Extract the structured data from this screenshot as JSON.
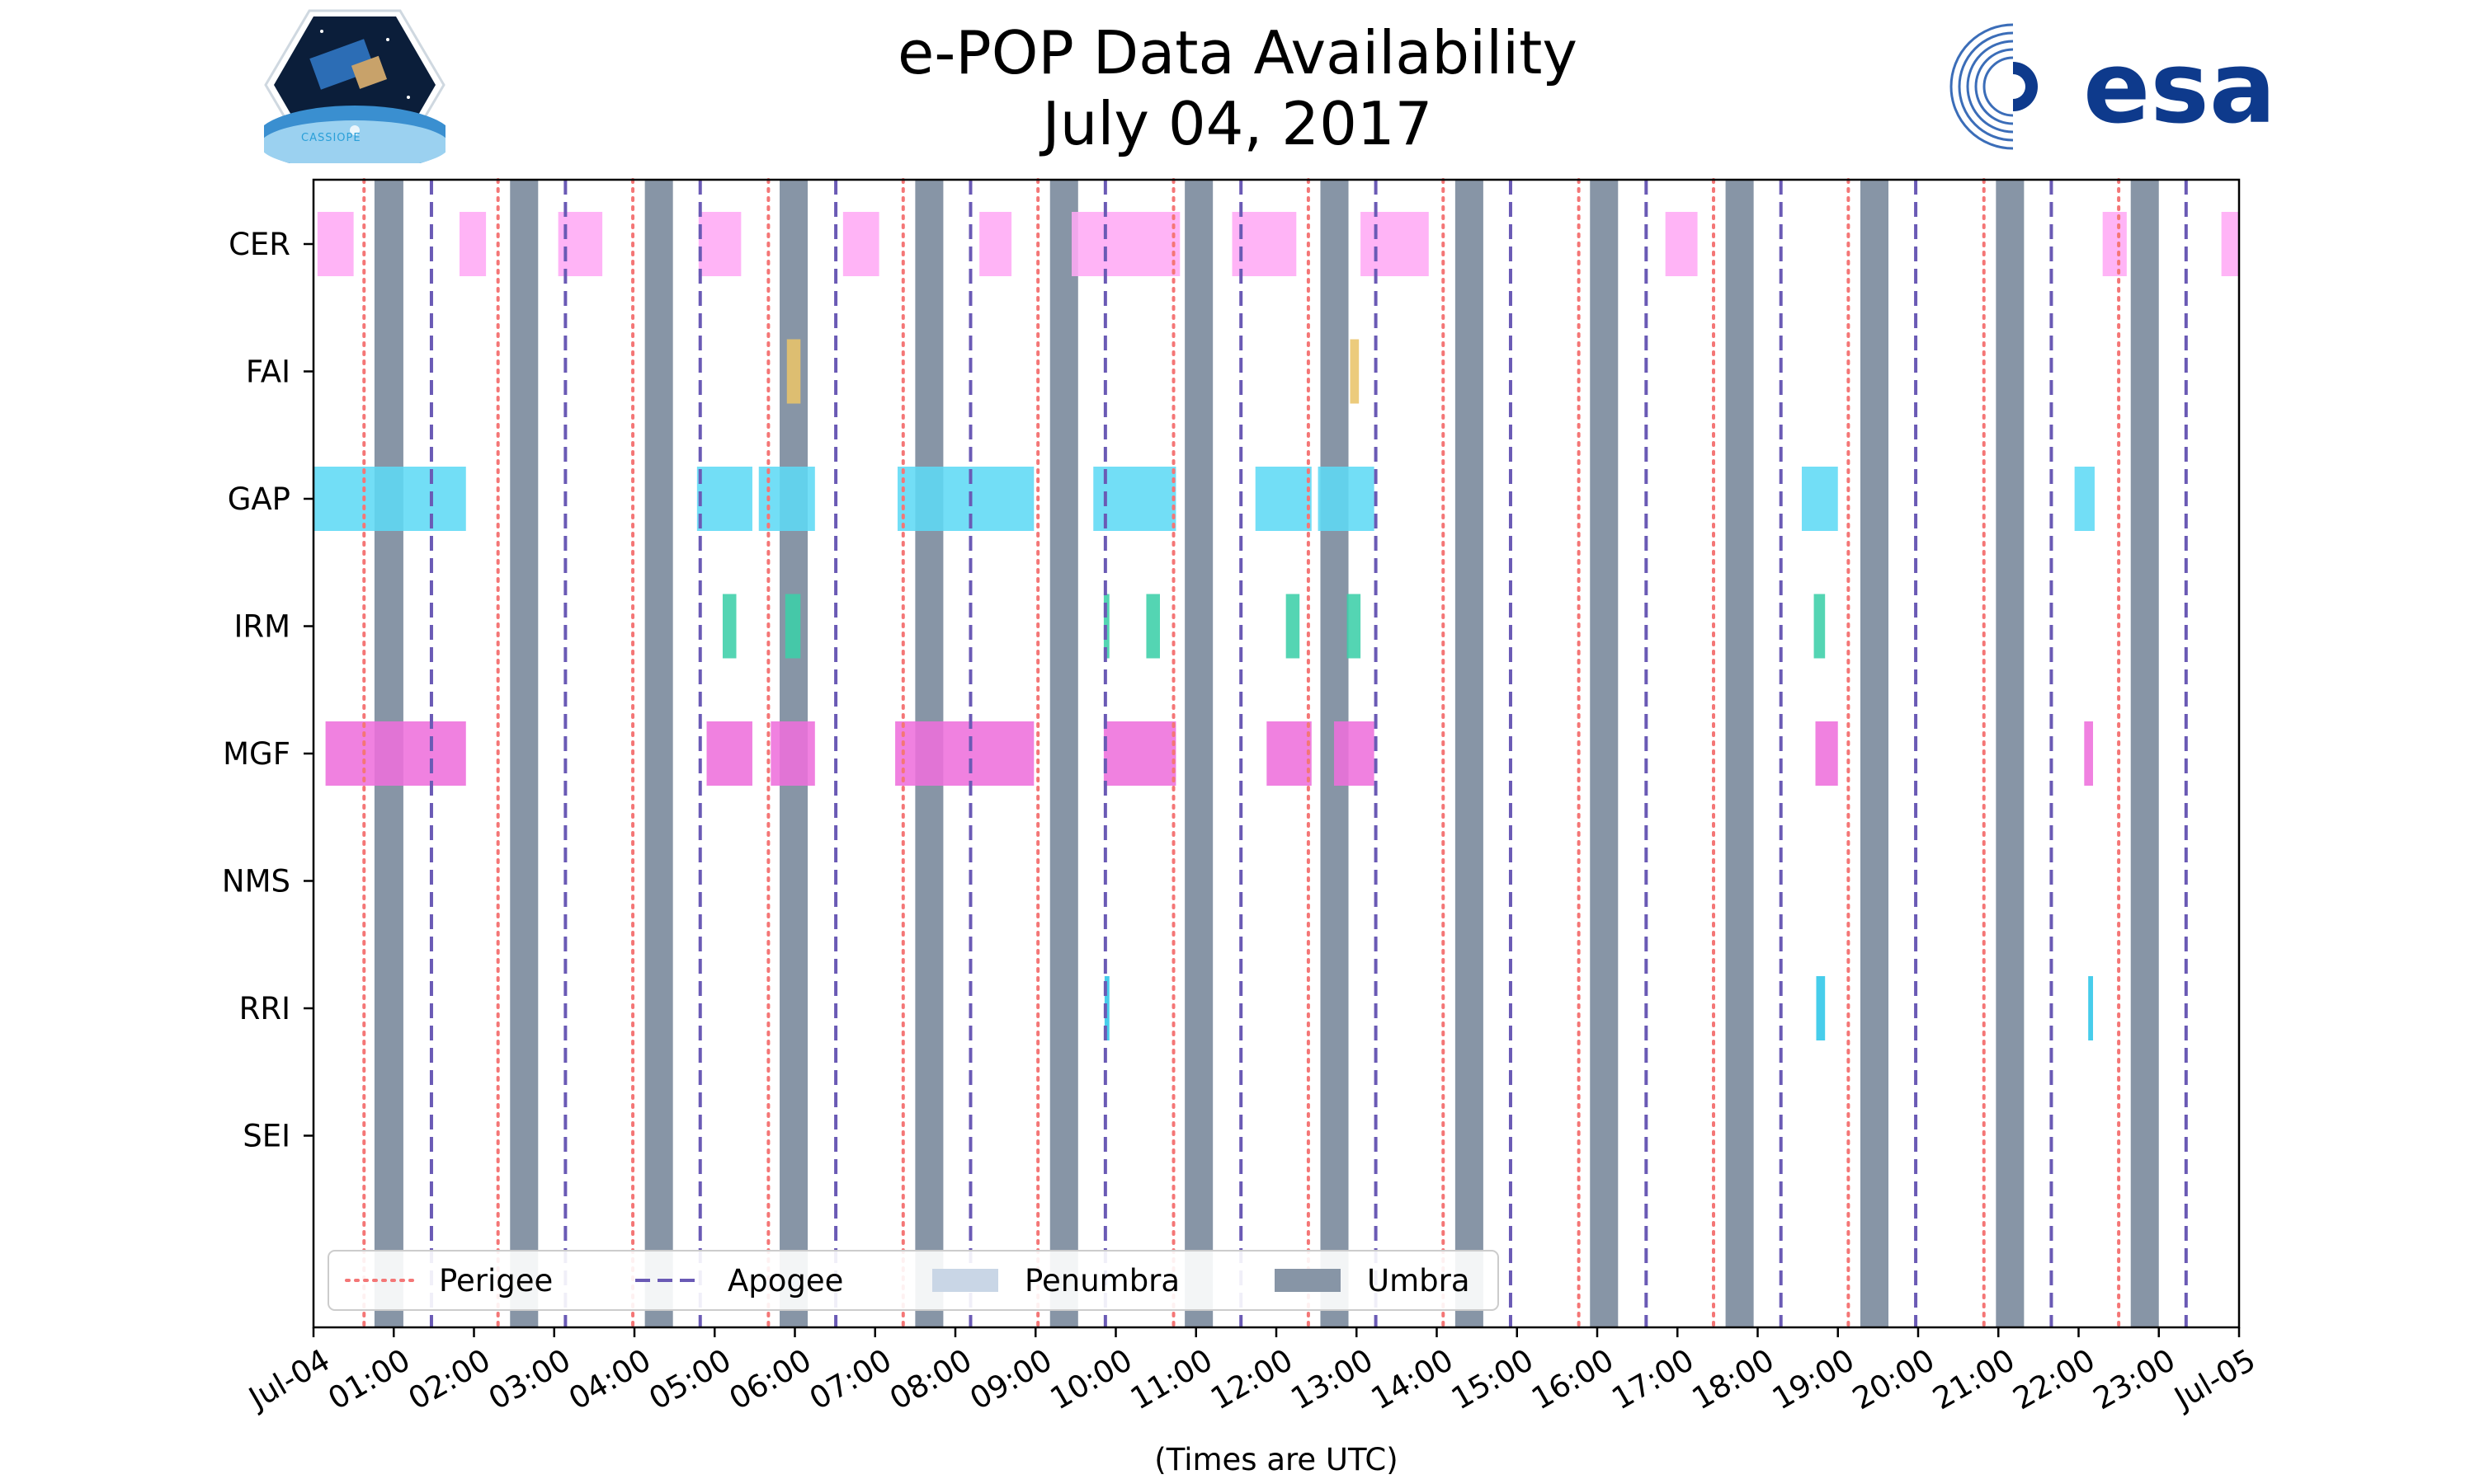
{
  "chart_data": {
    "type": "timeline",
    "title_line1": "e-POP Data Availability",
    "title_line2": "July 04, 2017",
    "xlabel": "(Times are UTC)",
    "ylabel": "",
    "xlim_hours": [
      0,
      24
    ],
    "grid": false,
    "xtick_labels": [
      "Jul-04",
      "01:00",
      "02:00",
      "03:00",
      "04:00",
      "05:00",
      "06:00",
      "07:00",
      "08:00",
      "09:00",
      "10:00",
      "11:00",
      "12:00",
      "13:00",
      "14:00",
      "15:00",
      "16:00",
      "17:00",
      "18:00",
      "19:00",
      "20:00",
      "21:00",
      "22:00",
      "23:00",
      "Jul-05"
    ],
    "instruments": [
      "CER",
      "FAI",
      "GAP",
      "IRM",
      "MGF",
      "NMS",
      "RRI",
      "SEI"
    ],
    "colors": {
      "CER": "#ffaaf5",
      "FAI": "#e9c46a",
      "GAP": "#5ed9f5",
      "IRM": "#3ccfa8",
      "MGF": "#ee70dc",
      "RRI": "#2ec6e8",
      "perigee": "#f47676",
      "apogee": "#6a5ab5",
      "umbra": "#8795a6",
      "penumbra": "#c9d6e6"
    },
    "perigee_hours": [
      0.63,
      2.3,
      3.98,
      5.67,
      7.35,
      9.03,
      10.72,
      12.4,
      14.08,
      15.77,
      17.45,
      19.13,
      20.82,
      22.5
    ],
    "apogee_hours": [
      1.47,
      3.14,
      4.82,
      6.51,
      8.19,
      9.87,
      11.56,
      13.24,
      14.92,
      16.61,
      18.29,
      19.97,
      21.66,
      23.34
    ],
    "umbra_intervals": [
      [
        0.76,
        1.12
      ],
      [
        2.45,
        2.8
      ],
      [
        4.13,
        4.48
      ],
      [
        5.81,
        6.16
      ],
      [
        7.5,
        7.85
      ],
      [
        9.18,
        9.53
      ],
      [
        10.86,
        11.21
      ],
      [
        12.55,
        12.9
      ],
      [
        14.23,
        14.58
      ],
      [
        15.91,
        16.26
      ],
      [
        17.6,
        17.95
      ],
      [
        19.28,
        19.63
      ],
      [
        20.97,
        21.32
      ],
      [
        22.65,
        23.0
      ]
    ],
    "availability": {
      "CER": [
        [
          0.05,
          0.5
        ],
        [
          1.82,
          2.15
        ],
        [
          3.05,
          3.6
        ],
        [
          4.8,
          5.33
        ],
        [
          6.6,
          7.05
        ],
        [
          8.3,
          8.7
        ],
        [
          9.45,
          10.8
        ],
        [
          11.45,
          12.25
        ],
        [
          13.05,
          13.9
        ],
        [
          16.85,
          17.25
        ],
        [
          22.3,
          22.6
        ],
        [
          23.78,
          24.0
        ]
      ],
      "FAI": [
        [
          5.9,
          6.07
        ],
        [
          12.92,
          13.03
        ]
      ],
      "GAP": [
        [
          0.0,
          1.9
        ],
        [
          4.78,
          5.47
        ],
        [
          5.55,
          6.25
        ],
        [
          7.28,
          8.98
        ],
        [
          9.72,
          10.75
        ],
        [
          11.74,
          12.44
        ],
        [
          12.52,
          13.22
        ],
        [
          18.55,
          19.0
        ],
        [
          21.95,
          22.2
        ]
      ],
      "IRM": [
        [
          5.1,
          5.27
        ],
        [
          5.88,
          6.07
        ],
        [
          9.85,
          9.92
        ],
        [
          10.38,
          10.55
        ],
        [
          12.12,
          12.29
        ],
        [
          12.88,
          13.05
        ],
        [
          18.7,
          18.84
        ]
      ],
      "MGF": [
        [
          0.15,
          1.9
        ],
        [
          4.9,
          5.47
        ],
        [
          5.7,
          6.25
        ],
        [
          7.25,
          8.98
        ],
        [
          9.85,
          10.75
        ],
        [
          11.88,
          12.44
        ],
        [
          12.72,
          13.22
        ],
        [
          18.72,
          19.0
        ],
        [
          22.07,
          22.18
        ]
      ],
      "NMS": [],
      "RRI": [
        [
          9.86,
          9.92
        ],
        [
          18.73,
          18.84
        ],
        [
          22.12,
          22.18
        ]
      ],
      "SEI": []
    },
    "legend": [
      {
        "label": "Perigee",
        "style": "dotted"
      },
      {
        "label": "Apogee",
        "style": "dashed"
      },
      {
        "label": "Penumbra",
        "style": "patch-light"
      },
      {
        "label": "Umbra",
        "style": "patch-dark"
      }
    ],
    "legend_position": "lower-left"
  },
  "logos": {
    "left_text": "CASSIOPE",
    "right_text": "esa"
  }
}
